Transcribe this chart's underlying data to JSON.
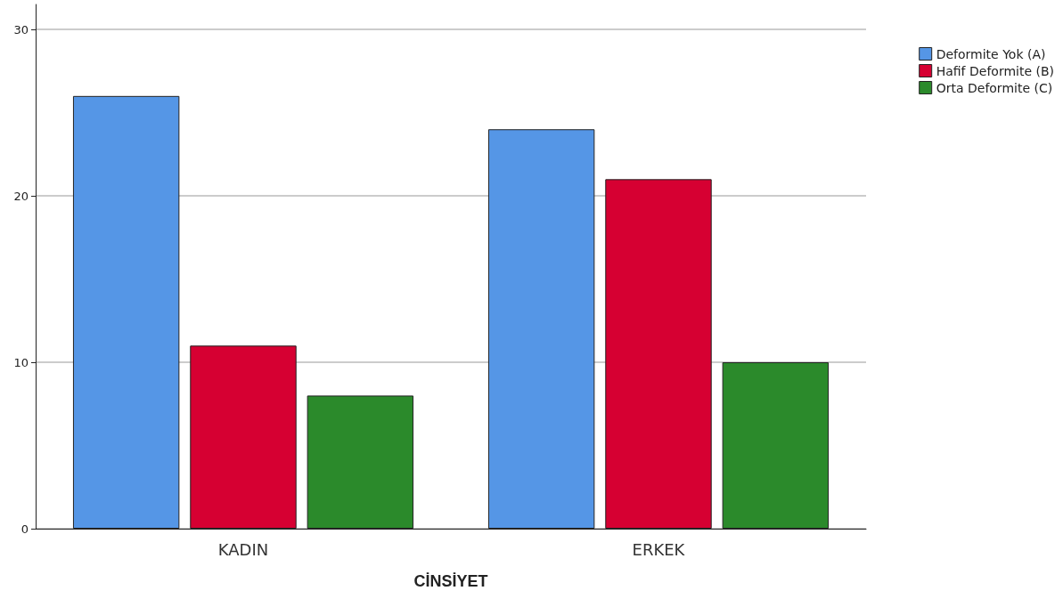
{
  "chart_data": {
    "type": "bar",
    "xlabel": "CİNSİYET",
    "categories": [
      "KADIN",
      "ERKEK"
    ],
    "series": [
      {
        "name": "Deformite Yok (A)",
        "color": "#5596e6",
        "values": [
          26,
          24
        ]
      },
      {
        "name": "Hafif Deformite (B)",
        "color": "#d60032",
        "values": [
          11,
          21
        ]
      },
      {
        "name": "Orta Deformite (C)",
        "color": "#2b8a2b",
        "values": [
          8,
          10
        ]
      }
    ],
    "ylim": [
      0,
      31.5
    ],
    "yticks": [
      0,
      10,
      20,
      30
    ],
    "grid": "y",
    "legend": "top right"
  }
}
